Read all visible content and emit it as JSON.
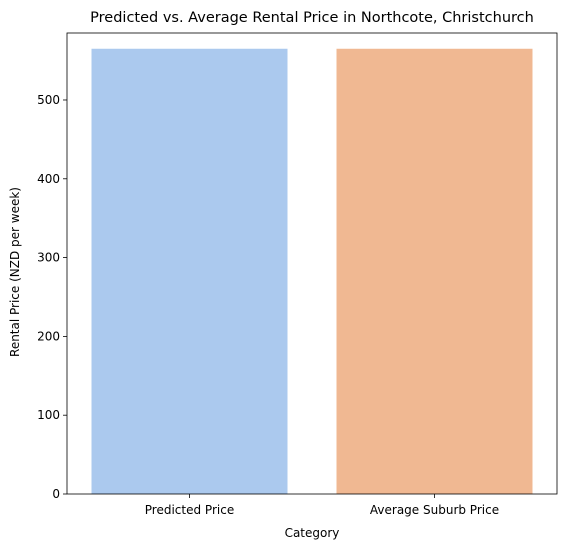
{
  "chart_data": {
    "type": "bar",
    "title": "Predicted vs. Average Rental Price in Northcote, Christchurch",
    "xlabel": "Category",
    "ylabel": "Rental Price (NZD per week)",
    "categories": [
      "Predicted Price",
      "Average Suburb Price"
    ],
    "values": [
      565,
      565
    ],
    "bar_colors": [
      "#abc9ee",
      "#f0b892"
    ],
    "ylim": [
      0,
      585
    ],
    "yticks": [
      0,
      100,
      200,
      300,
      400,
      500
    ],
    "grid": false,
    "legend": "none"
  }
}
